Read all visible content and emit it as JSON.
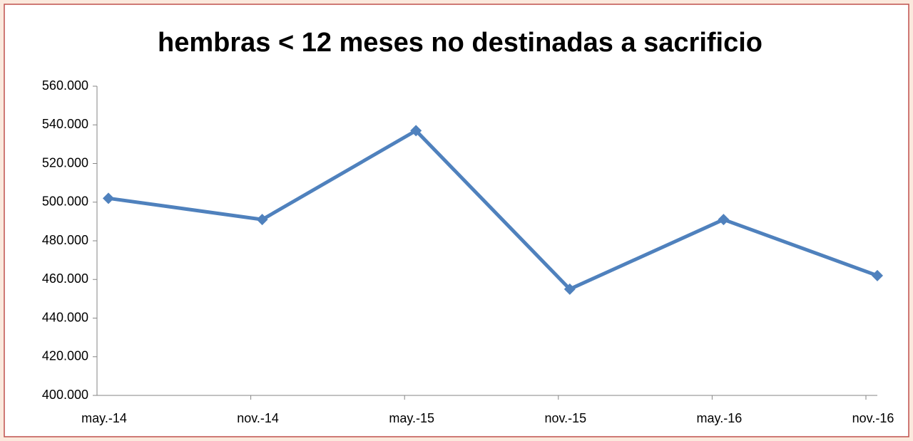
{
  "chart_data": {
    "type": "line",
    "title": "hembras < 12 meses no destinadas a sacrificio",
    "categories": [
      "may.-14",
      "nov.-14",
      "may.-15",
      "nov.-15",
      "may.-16",
      "nov.-16"
    ],
    "series": [
      {
        "color": "#4f81bd",
        "values": [
          502000,
          491000,
          537000,
          455000,
          491000,
          462000
        ]
      }
    ],
    "ylim": [
      400000,
      560000
    ],
    "yticks": [
      {
        "value": 400000,
        "label": "400.000"
      },
      {
        "value": 420000,
        "label": "420.000"
      },
      {
        "value": 440000,
        "label": "440.000"
      },
      {
        "value": 460000,
        "label": "460.000"
      },
      {
        "value": 480000,
        "label": "480.000"
      },
      {
        "value": 500000,
        "label": "500.000"
      },
      {
        "value": 520000,
        "label": "520.000"
      },
      {
        "value": 540000,
        "label": "540.000"
      },
      {
        "value": 560000,
        "label": "560.000"
      }
    ],
    "grid": false
  }
}
